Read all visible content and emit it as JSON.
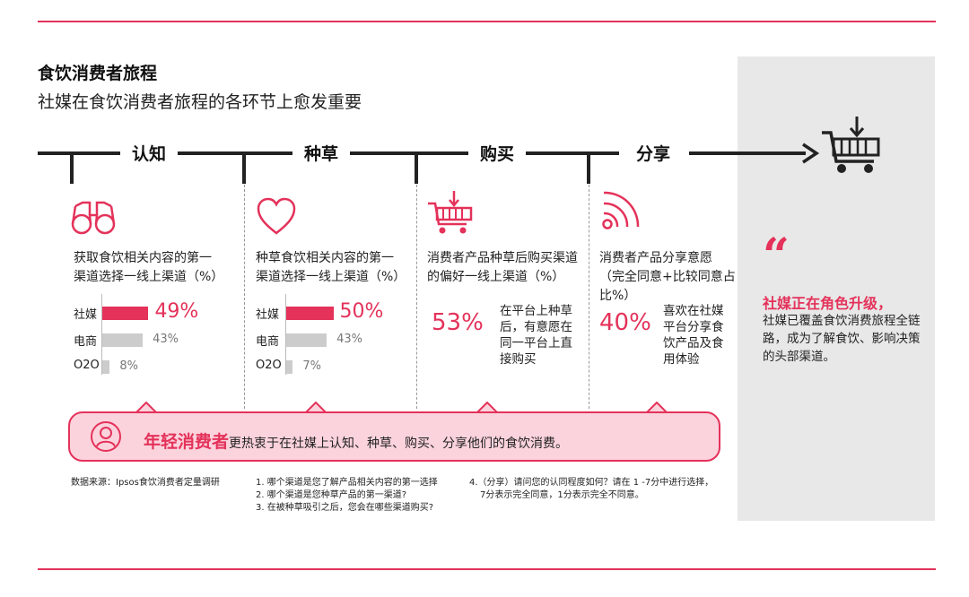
{
  "header": {
    "title": "食饮消费者旅程",
    "subtitle": "社媒在食饮消费者旅程的各环节上愈发重要"
  },
  "stages": [
    "认知",
    "种草",
    "购买",
    "分享"
  ],
  "icons": [
    "binoculars-icon",
    "heart-icon",
    "cart-icon",
    "share-signal-icon",
    "cart-icon",
    "user-icon"
  ],
  "colors": {
    "accent": "#e4325a",
    "bar_gray": "#cccccc",
    "banner_bg": "#fbd3dd",
    "panel_bg": "#e8e8e8"
  },
  "columns": {
    "awareness": {
      "text": [
        "获取食饮相关内容的第一",
        "渠道选择一线上渠道（%）"
      ]
    },
    "seeding": {
      "text": [
        "种草食饮相关内容的第一",
        "渠道选择一线上渠道（%）"
      ]
    },
    "purchase": {
      "text": [
        "消费者产品种草后购买渠道",
        "的偏好一线上渠道（%）"
      ],
      "pct": "53%",
      "desc": [
        "在平台上种草",
        "后，有意愿在",
        "同一平台上直",
        "接购买"
      ]
    },
    "share": {
      "text": [
        "消费者产品分享意愿",
        "（完全同意+比较同意占",
        "比%）"
      ],
      "pct": "40%",
      "desc": [
        "喜欢在社媒",
        "平台分享食",
        "饮产品及食",
        "用体验"
      ]
    }
  },
  "chart_data": [
    {
      "type": "bar",
      "orientation": "horizontal",
      "categories": [
        "社媒",
        "电商",
        "O2O"
      ],
      "values": [
        49,
        43,
        8
      ],
      "value_labels": [
        "49%",
        "43%",
        "8%"
      ],
      "highlight": "社媒"
    },
    {
      "type": "bar",
      "orientation": "horizontal",
      "categories": [
        "社媒",
        "电商",
        "O2O"
      ],
      "values": [
        50,
        43,
        7
      ],
      "value_labels": [
        "50%",
        "43%",
        "7%"
      ],
      "highlight": "社媒"
    }
  ],
  "banner": {
    "highlight": "年轻消费者",
    "text": "更热衷于在社媒上认知、种草、购买、分享他们的食饮消费。"
  },
  "footnotes": {
    "source": "数据来源：Ipsos食饮消费者定量调研",
    "notes_col1": [
      "1.   哪个渠道是您了解产品相关内容的第一选择",
      "2.   哪个渠道是您种草产品的第一渠道?",
      "3.   在被种草吸引之后，您会在哪些渠道购买?"
    ],
    "notes_col2": [
      "4.（分享）请问您的认同程度如何？请在 1 -7分中进行选择，",
      "   7分表示完全同意，1分表示完全不同意。"
    ]
  },
  "panel": {
    "quote": "“",
    "heading": "社媒正在角色升级，",
    "text": "社媒已覆盖食饮消费旅程全链路，成为了解食饮、影响决策的头部渠道。"
  }
}
